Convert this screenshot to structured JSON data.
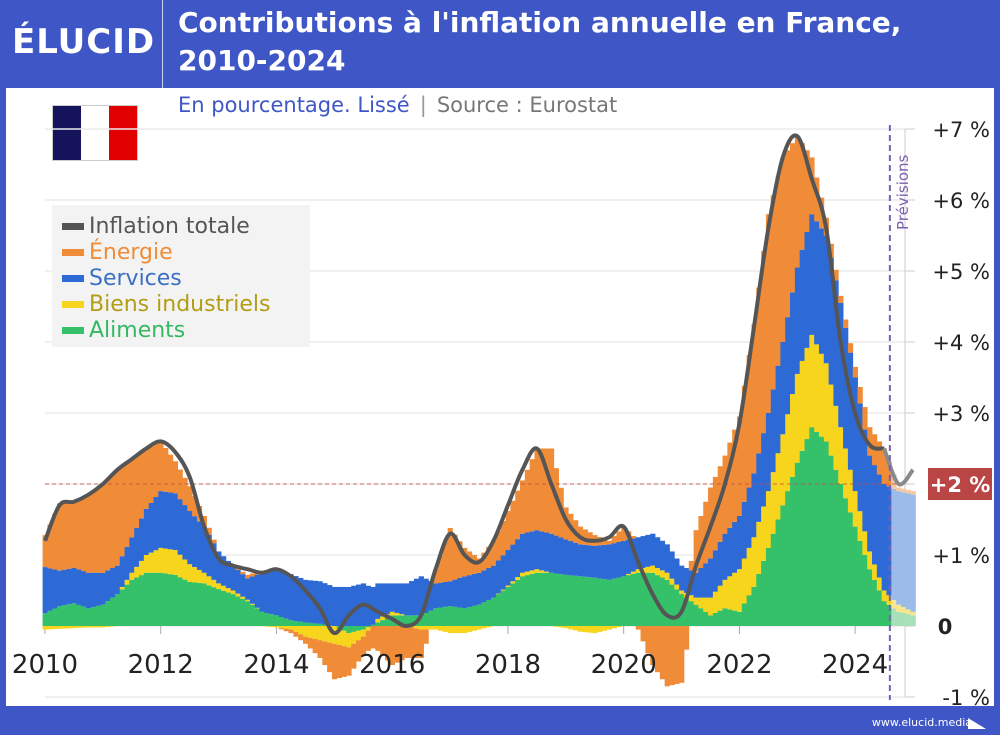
{
  "header": {
    "logo": "ÉLUCID",
    "title_line1": "Contributions à l'inflation annuelle en France,",
    "title_line2": "2010-2024",
    "subtitle": "En pourcentage. Lissé",
    "separator": "|",
    "source": "Source : Eurostat"
  },
  "flag": {
    "name": "France",
    "colors": [
      "#14135c",
      "#ffffff",
      "#e00000"
    ]
  },
  "footer": {
    "url": "www.elucid.media"
  },
  "colors": {
    "energie": "#f08c37",
    "services": "#2e6ad6",
    "biens": "#f7d51d",
    "aliments": "#35c06a",
    "total": "#555555",
    "target": "#c94a4a",
    "forecast": "#7a5fb0",
    "forecast_services": "#9bbbe8",
    "forecast_energie": "#f5c9a4",
    "forecast_biens": "#f7e68f",
    "forecast_aliments": "#a7e0b9"
  },
  "chart_data": {
    "type": "bar",
    "stacked": true,
    "title": "Contributions à l'inflation annuelle en France, 2010-2024",
    "subtitle": "En pourcentage. Lissé",
    "source": "Eurostat",
    "xlabel": "",
    "ylabel": "",
    "xlim": [
      2009.95,
      2025.05
    ],
    "ylim": [
      -1,
      7
    ],
    "x_ticks": [
      2010,
      2012,
      2014,
      2016,
      2018,
      2020,
      2022,
      2024
    ],
    "x_tick_labels": [
      "2010",
      "2012",
      "2014",
      "2016",
      "2018",
      "2020",
      "2022",
      "2024"
    ],
    "y_ticks": [
      -1,
      0,
      1,
      2,
      3,
      4,
      5,
      6,
      7
    ],
    "y_tick_labels": [
      "-1 %",
      "0",
      "+1 %",
      "+2 %",
      "+3 %",
      "+4 %",
      "+5 %",
      "+6 %",
      "+7 %"
    ],
    "grid": true,
    "legend": {
      "position": "top-left",
      "entries": [
        {
          "key": "total",
          "label": "Inflation totale"
        },
        {
          "key": "energie",
          "label": "Énergie"
        },
        {
          "key": "services",
          "label": "Services"
        },
        {
          "key": "biens",
          "label": "Biens industriels"
        },
        {
          "key": "aliments",
          "label": "Aliments"
        }
      ]
    },
    "target": {
      "value": 2,
      "label": "+2 %"
    },
    "forecast": {
      "start": 2024.6,
      "label": "Prévisions"
    },
    "x": [
      2010.0,
      2010.25,
      2010.5,
      2010.75,
      2011.0,
      2011.25,
      2011.5,
      2011.75,
      2012.0,
      2012.25,
      2012.5,
      2012.75,
      2013.0,
      2013.25,
      2013.5,
      2013.75,
      2014.0,
      2014.25,
      2014.5,
      2014.75,
      2015.0,
      2015.25,
      2015.5,
      2015.75,
      2016.0,
      2016.25,
      2016.5,
      2016.75,
      2017.0,
      2017.25,
      2017.5,
      2017.75,
      2018.0,
      2018.25,
      2018.5,
      2018.75,
      2019.0,
      2019.25,
      2019.5,
      2019.75,
      2020.0,
      2020.25,
      2020.5,
      2020.75,
      2021.0,
      2021.25,
      2021.5,
      2021.75,
      2022.0,
      2022.25,
      2022.5,
      2022.75,
      2023.0,
      2023.25,
      2023.5,
      2023.75,
      2024.0,
      2024.25,
      2024.5,
      2024.75,
      2025.0
    ],
    "series": [
      {
        "name": "Aliments",
        "key": "aliments",
        "values": [
          0.18,
          0.28,
          0.32,
          0.25,
          0.3,
          0.45,
          0.65,
          0.75,
          0.75,
          0.72,
          0.62,
          0.6,
          0.52,
          0.45,
          0.35,
          0.2,
          0.15,
          0.08,
          0.05,
          0.03,
          0.0,
          -0.1,
          -0.05,
          0.05,
          0.15,
          0.15,
          0.15,
          0.25,
          0.28,
          0.25,
          0.3,
          0.4,
          0.55,
          0.7,
          0.75,
          0.75,
          0.72,
          0.7,
          0.68,
          0.65,
          0.7,
          0.75,
          0.75,
          0.65,
          0.45,
          0.3,
          0.15,
          0.25,
          0.2,
          0.55,
          1.1,
          1.7,
          2.3,
          2.8,
          2.6,
          2.0,
          1.4,
          0.8,
          0.35,
          0.2,
          0.15
        ]
      },
      {
        "name": "Biens industriels",
        "key": "biens",
        "values": [
          -0.05,
          -0.04,
          -0.03,
          -0.02,
          -0.02,
          0.0,
          0.1,
          0.25,
          0.35,
          0.35,
          0.25,
          0.15,
          0.08,
          0.05,
          0.02,
          0.0,
          -0.02,
          -0.05,
          -0.15,
          -0.2,
          -0.25,
          -0.2,
          -0.1,
          0.05,
          0.05,
          0.0,
          -0.05,
          -0.05,
          -0.1,
          -0.1,
          -0.05,
          0.0,
          0.02,
          0.05,
          0.05,
          0.0,
          -0.03,
          -0.08,
          -0.1,
          -0.05,
          0.0,
          0.05,
          0.1,
          0.1,
          0.05,
          0.1,
          0.25,
          0.4,
          0.6,
          0.7,
          0.8,
          1.0,
          1.25,
          1.3,
          1.1,
          0.8,
          0.5,
          0.25,
          0.15,
          0.1,
          0.05
        ]
      },
      {
        "name": "Services",
        "key": "services",
        "values": [
          0.65,
          0.5,
          0.5,
          0.5,
          0.45,
          0.4,
          0.5,
          0.65,
          0.8,
          0.8,
          0.75,
          0.65,
          0.45,
          0.35,
          0.3,
          0.55,
          0.65,
          0.65,
          0.6,
          0.6,
          0.55,
          0.55,
          0.6,
          0.5,
          0.4,
          0.45,
          0.55,
          0.35,
          0.35,
          0.45,
          0.45,
          0.45,
          0.5,
          0.55,
          0.55,
          0.55,
          0.5,
          0.45,
          0.45,
          0.5,
          0.5,
          0.45,
          0.45,
          0.4,
          0.35,
          0.35,
          0.55,
          0.65,
          0.75,
          0.9,
          1.1,
          1.3,
          1.5,
          1.7,
          1.8,
          1.75,
          1.6,
          1.35,
          1.5,
          1.6,
          1.65
        ]
      },
      {
        "name": "Énergie",
        "key": "energie",
        "values": [
          0.45,
          0.95,
          0.95,
          1.1,
          1.25,
          1.35,
          1.1,
          0.85,
          0.7,
          0.45,
          0.35,
          0.15,
          0.0,
          0.0,
          0.05,
          0.03,
          0.0,
          -0.05,
          -0.1,
          -0.25,
          -0.5,
          -0.4,
          -0.25,
          -0.35,
          -0.55,
          -0.45,
          -0.4,
          0.2,
          0.75,
          0.4,
          0.2,
          0.35,
          0.55,
          0.75,
          1.15,
          1.2,
          0.45,
          0.25,
          0.15,
          0.05,
          0.2,
          -0.05,
          -0.55,
          -0.85,
          -0.8,
          0.6,
          1.0,
          1.1,
          1.4,
          2.1,
          2.8,
          2.6,
          1.85,
          0.8,
          0.25,
          0.1,
          0.15,
          0.4,
          0.5,
          0.05,
          0.05
        ]
      },
      {
        "name": "Inflation totale",
        "key": "total",
        "type": "line",
        "values": [
          1.2,
          1.7,
          1.75,
          1.85,
          2.0,
          2.2,
          2.35,
          2.5,
          2.6,
          2.45,
          2.1,
          1.4,
          0.95,
          0.85,
          0.8,
          0.75,
          0.8,
          0.7,
          0.5,
          0.25,
          -0.1,
          0.15,
          0.3,
          0.2,
          0.1,
          0.0,
          0.15,
          0.8,
          1.3,
          1.0,
          0.9,
          1.2,
          1.7,
          2.2,
          2.5,
          2.0,
          1.5,
          1.25,
          1.2,
          1.25,
          1.4,
          0.9,
          0.45,
          0.15,
          0.2,
          0.85,
          1.4,
          2.0,
          2.85,
          4.2,
          5.6,
          6.6,
          6.9,
          6.3,
          5.6,
          4.0,
          3.0,
          2.55,
          2.5,
          2.0,
          2.2
        ]
      }
    ]
  }
}
